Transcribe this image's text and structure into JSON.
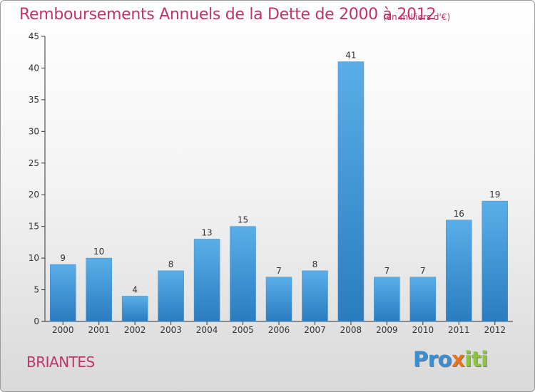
{
  "chart_data": {
    "type": "bar",
    "title": "Remboursements Annuels de la Dette de 2000 à 2012",
    "unit_note": "(en milliers d'€)",
    "categories": [
      "2000",
      "2001",
      "2002",
      "2003",
      "2004",
      "2005",
      "2006",
      "2007",
      "2008",
      "2009",
      "2010",
      "2011",
      "2012"
    ],
    "values": [
      9,
      10,
      4,
      8,
      13,
      15,
      7,
      8,
      41,
      7,
      7,
      16,
      19
    ],
    "ylim": [
      0,
      45
    ],
    "yticks": [
      0,
      5,
      10,
      15,
      20,
      25,
      30,
      35,
      40,
      45
    ],
    "grid": false,
    "bar_color_light": "#5aaee8",
    "bar_color_dark": "#2a7cbf"
  },
  "footer": {
    "place": "BRIANTES",
    "logo_letters": [
      {
        "ch": "P",
        "color": "#3a8fd4"
      },
      {
        "ch": "r",
        "color": "#3a8fd4"
      },
      {
        "ch": "o",
        "color": "#3a8fd4"
      },
      {
        "ch": "x",
        "color": "#e8731c"
      },
      {
        "ch": "i",
        "color": "#8cc63f"
      },
      {
        "ch": "t",
        "color": "#8cc63f"
      },
      {
        "ch": "i",
        "color": "#8cc63f"
      }
    ]
  }
}
